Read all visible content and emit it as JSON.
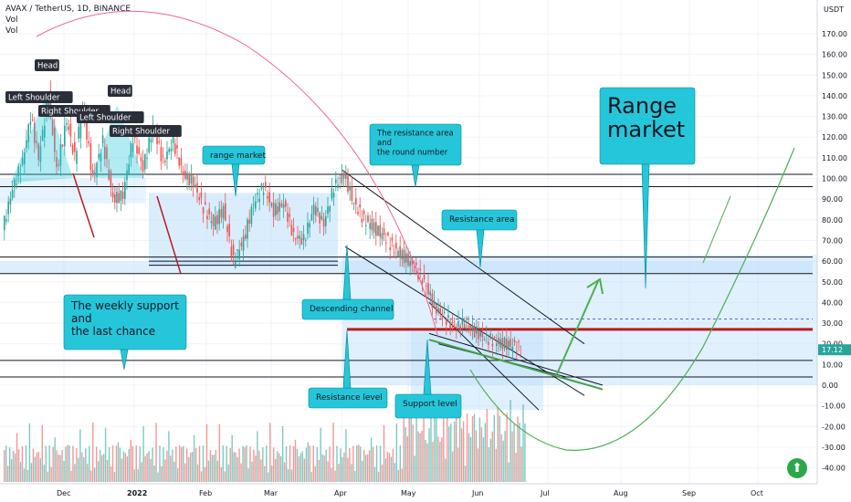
{
  "header": {
    "symbol": "AVAX / TetherUS, 1D, BINANCE",
    "vol1": "Vol",
    "vol2": "Vol"
  },
  "axis": {
    "currency": "USDT",
    "current_price": "17.12",
    "up_icon": "arrow-up-icon"
  },
  "chart_data": {
    "type": "candlestick",
    "title": "AVAX / TetherUS, 1D, BINANCE",
    "y_ticks": [
      "170.00",
      "160.00",
      "150.00",
      "140.00",
      "130.00",
      "120.00",
      "110.00",
      "100.00",
      "90.00",
      "80.00",
      "70.00",
      "60.00",
      "50.00",
      "40.00",
      "30.00",
      "20.00",
      "10.00",
      "0.00",
      "-10.00",
      "-20.00",
      "-30.00",
      "-40.00"
    ],
    "x_ticks": [
      "Dec",
      "2022",
      "Feb",
      "Mar",
      "Apr",
      "May",
      "Jun",
      "Jul",
      "Aug",
      "Sep",
      "Oct"
    ],
    "price_path": [
      [
        0,
        75
      ],
      [
        5,
        95
      ],
      [
        10,
        108
      ],
      [
        14,
        130
      ],
      [
        18,
        110
      ],
      [
        23,
        140
      ],
      [
        27,
        104
      ],
      [
        32,
        128
      ],
      [
        36,
        110
      ],
      [
        40,
        135
      ],
      [
        45,
        100
      ],
      [
        50,
        118
      ],
      [
        55,
        90
      ],
      [
        60,
        92
      ],
      [
        65,
        120
      ],
      [
        70,
        105
      ],
      [
        75,
        125
      ],
      [
        80,
        108
      ],
      [
        85,
        118
      ],
      [
        90,
        102
      ],
      [
        95,
        98
      ],
      [
        100,
        86
      ],
      [
        105,
        78
      ],
      [
        110,
        85
      ],
      [
        115,
        60
      ],
      [
        120,
        70
      ],
      [
        125,
        88
      ],
      [
        130,
        96
      ],
      [
        135,
        84
      ],
      [
        140,
        88
      ],
      [
        145,
        72
      ],
      [
        150,
        70
      ],
      [
        155,
        86
      ],
      [
        160,
        78
      ],
      [
        165,
        96
      ],
      [
        170,
        102
      ],
      [
        175,
        88
      ],
      [
        180,
        80
      ],
      [
        185,
        76
      ],
      [
        190,
        72
      ],
      [
        195,
        66
      ],
      [
        200,
        62
      ],
      [
        205,
        57
      ],
      [
        210,
        50
      ],
      [
        215,
        38
      ],
      [
        220,
        33
      ],
      [
        225,
        28
      ],
      [
        230,
        30
      ],
      [
        235,
        26
      ],
      [
        240,
        23
      ],
      [
        245,
        21
      ],
      [
        250,
        20
      ],
      [
        255,
        19
      ],
      [
        258,
        17.12
      ]
    ],
    "current_price": 17.12,
    "annotations": {
      "left_shoulder_1": "Left Shoulder",
      "head_1": "Head",
      "right_shoulder_1": "Right Shoulder",
      "left_shoulder_2": "Left Shoulder",
      "head_2": "Head",
      "right_shoulder_2": "Right Shoulder",
      "range_market_small": "range market",
      "resistance_note": [
        "The resistance area",
        "and",
        "the round number"
      ],
      "resistance_area": "Resistance area",
      "descending_channel": "Descending channel",
      "weekly_support": [
        "The weekly support",
        "and",
        "the last chance"
      ],
      "resistance_level": "Resistance level",
      "support_level": "Support level",
      "range_market_big": [
        "Range",
        "market"
      ]
    },
    "horizontal_levels": [
      102,
      96,
      62,
      55,
      28,
      26,
      12,
      0
    ],
    "colors": {
      "up": "#26a69a",
      "down": "#ef5350",
      "callout": "#26c6da",
      "range_box": "#bbdefb",
      "arc": "#f06292",
      "forecast": "#4caf50"
    }
  }
}
